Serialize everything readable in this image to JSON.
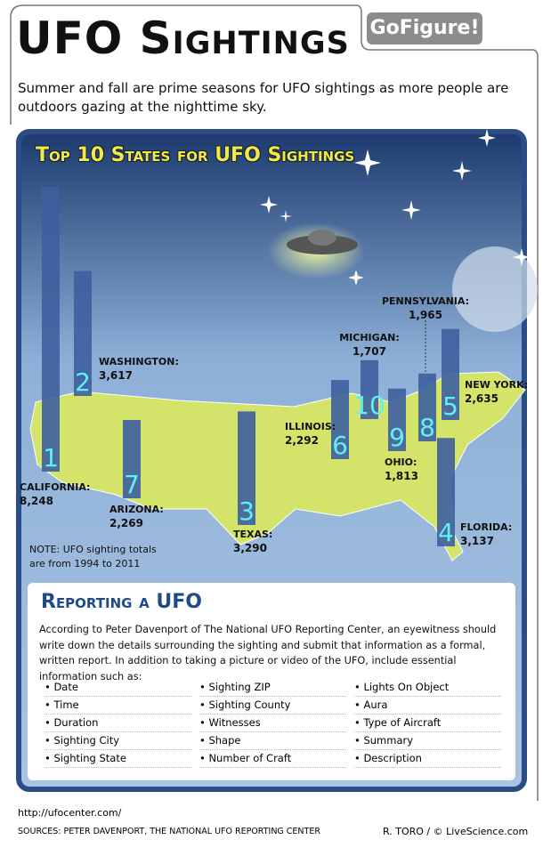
{
  "header": {
    "title": "UFO Sightings",
    "badge": "GoFigure!",
    "intro": "Summer and fall are prime seasons for UFO sightings as more people are outdoors gazing at the nighttime sky."
  },
  "chart_data": {
    "type": "bar",
    "title": "Top 10 States for UFO Sightings",
    "categories": [
      "CALIFORNIA:",
      "WASHINGTON:",
      "TEXAS:",
      "FLORIDA:",
      "NEW YORK:",
      "ILLINOIS:",
      "ARIZONA:",
      "PENNSYLVANIA:",
      "OHIO:",
      "MICHIGAN:"
    ],
    "values": [
      8248,
      3617,
      3290,
      3137,
      2635,
      2292,
      2269,
      1965,
      1813,
      1707
    ],
    "value_labels": [
      "8,248",
      "3,617",
      "3,290",
      "3,137",
      "2,635",
      "2,292",
      "2,269",
      "1,965",
      "1,813",
      "1,707"
    ],
    "rank_labels": [
      "1",
      "2",
      "3",
      "4",
      "5",
      "6",
      "7",
      "8",
      "9",
      "10"
    ],
    "color": "#3d5f9e",
    "note": "NOTE: UFO sighting totals are from 1994 to 2011"
  },
  "reporting": {
    "title": "Reporting a UFO",
    "text": "According to Peter Davenport of The National UFO Reporting Center, an eyewitness should write down the details surrounding the sighting and submit that information as a formal, written report. In addition to taking a picture or video of the UFO, include essential information such as:",
    "items": [
      "Date",
      "Time",
      "Duration",
      "Sighting City",
      "Sighting State",
      "Sighting ZIP",
      "Sighting County",
      "Witnesses",
      "Shape",
      "Number of Craft",
      "Lights On Object",
      "Aura",
      "Type of Aircraft",
      "Summary",
      "Description"
    ]
  },
  "footer": {
    "url": "http://ufocenter.com/",
    "sources": "SOURCES: PETER DAVENPORT, THE NATIONAL UFO REPORTING CENTER",
    "credit": "R. TORO / © LiveScience.com"
  }
}
